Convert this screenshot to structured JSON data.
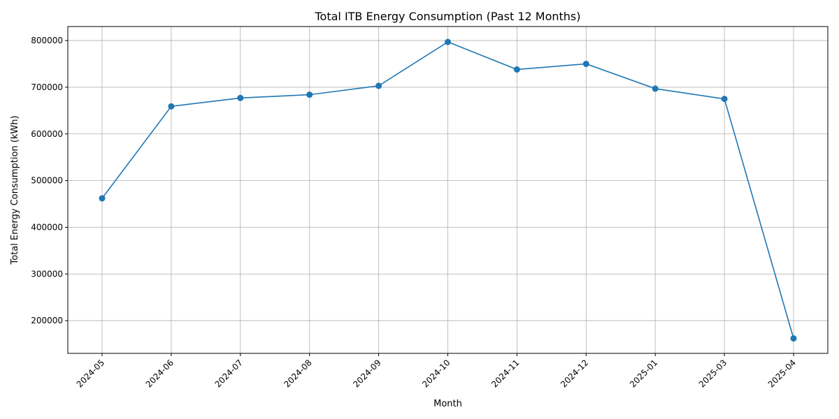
{
  "chart_data": {
    "type": "line",
    "title": "Total ITB Energy Consumption (Past 12 Months)",
    "xlabel": "Month",
    "ylabel": "Total Energy Consumption (kWh)",
    "categories": [
      "2024-05",
      "2024-06",
      "2024-07",
      "2024-08",
      "2024-09",
      "2024-10",
      "2024-11",
      "2024-12",
      "2025-01",
      "2025-03",
      "2025-04"
    ],
    "series": [
      {
        "values": [
          462000,
          659000,
          677000,
          684000,
          703000,
          797000,
          738000,
          750000,
          697000,
          675000,
          162000
        ],
        "color": "#1f77b4",
        "marker": "circle"
      }
    ],
    "ylim": [
      130000,
      830000
    ],
    "yticks": [
      200000,
      300000,
      400000,
      500000,
      600000,
      700000,
      800000
    ],
    "ytick_labels": [
      "200000",
      "300000",
      "400000",
      "500000",
      "600000",
      "700000",
      "800000"
    ],
    "grid": true,
    "xtick_rotation": 45
  }
}
